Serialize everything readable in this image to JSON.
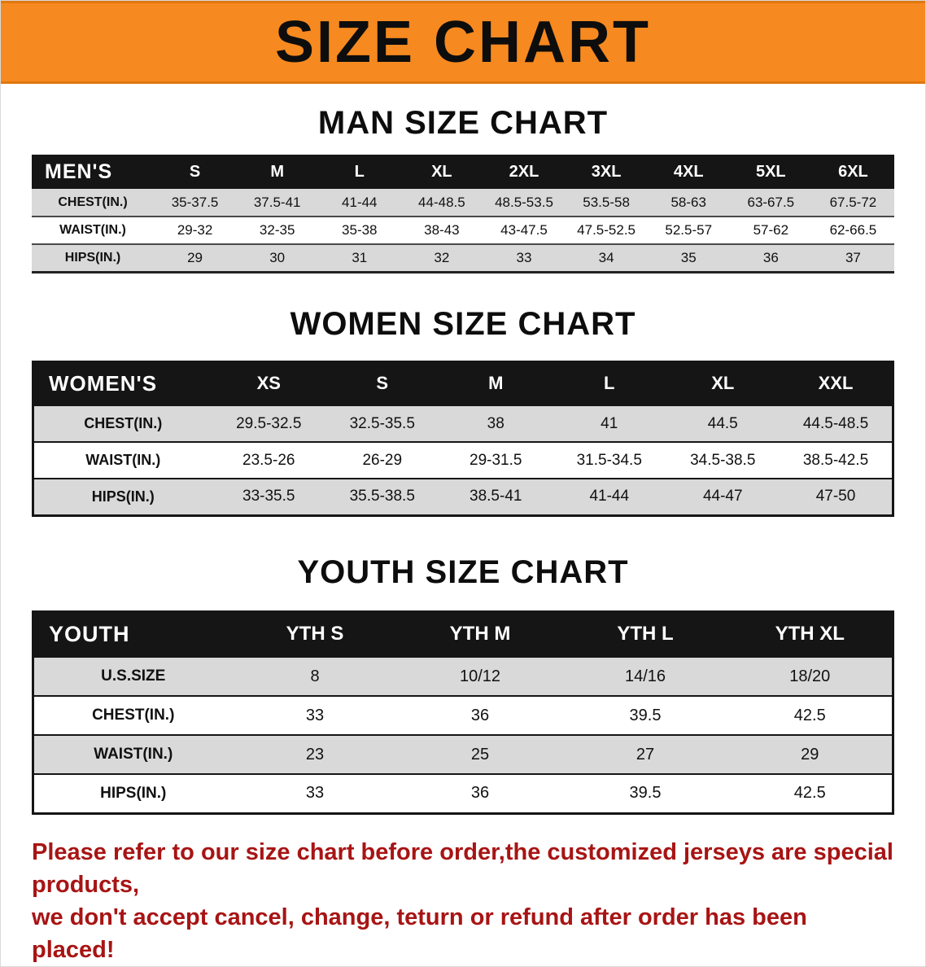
{
  "banner": {
    "title": "SIZE CHART"
  },
  "colors": {
    "banner_bg": "#f6891f",
    "table_header_bg": "#151515",
    "row_stripe": "#d9d9d9",
    "note_text": "#a81414"
  },
  "sections": [
    {
      "heading": "MAN SIZE CHART",
      "table": {
        "header": [
          "MEN'S",
          "S",
          "M",
          "L",
          "XL",
          "2XL",
          "3XL",
          "4XL",
          "5XL",
          "6XL"
        ],
        "rows": [
          [
            "CHEST(IN.)",
            "35-37.5",
            "37.5-41",
            "41-44",
            "44-48.5",
            "48.5-53.5",
            "53.5-58",
            "58-63",
            "63-67.5",
            "67.5-72"
          ],
          [
            "WAIST(IN.)",
            "29-32",
            "32-35",
            "35-38",
            "38-43",
            "43-47.5",
            "47.5-52.5",
            "52.5-57",
            "57-62",
            "62-66.5"
          ],
          [
            "HIPS(IN.)",
            "29",
            "30",
            "31",
            "32",
            "33",
            "34",
            "35",
            "36",
            "37"
          ]
        ]
      }
    },
    {
      "heading": "WOMEN SIZE CHART",
      "table": {
        "header": [
          "WOMEN'S",
          "XS",
          "S",
          "M",
          "L",
          "XL",
          "XXL"
        ],
        "rows": [
          [
            "CHEST(IN.)",
            "29.5-32.5",
            "32.5-35.5",
            "38",
            "41",
            "44.5",
            "44.5-48.5"
          ],
          [
            "WAIST(IN.)",
            "23.5-26",
            "26-29",
            "29-31.5",
            "31.5-34.5",
            "34.5-38.5",
            "38.5-42.5"
          ],
          [
            "HIPS(IN.)",
            "33-35.5",
            "35.5-38.5",
            "38.5-41",
            "41-44",
            "44-47",
            "47-50"
          ]
        ]
      }
    },
    {
      "heading": "YOUTH SIZE CHART",
      "table": {
        "header": [
          "YOUTH",
          "YTH S",
          "YTH M",
          "YTH L",
          "YTH XL"
        ],
        "rows": [
          [
            "U.S.SIZE",
            "8",
            "10/12",
            "14/16",
            "18/20"
          ],
          [
            "CHEST(IN.)",
            "33",
            "36",
            "39.5",
            "42.5"
          ],
          [
            "WAIST(IN.)",
            "23",
            "25",
            "27",
            "29"
          ],
          [
            "HIPS(IN.)",
            "33",
            "36",
            "39.5",
            "42.5"
          ]
        ]
      }
    }
  ],
  "note": {
    "line1": "Please refer to our size chart before order,the customized jerseys are special products,",
    "line2": "we don't accept cancel, change, teturn or refund after order has been placed!"
  }
}
